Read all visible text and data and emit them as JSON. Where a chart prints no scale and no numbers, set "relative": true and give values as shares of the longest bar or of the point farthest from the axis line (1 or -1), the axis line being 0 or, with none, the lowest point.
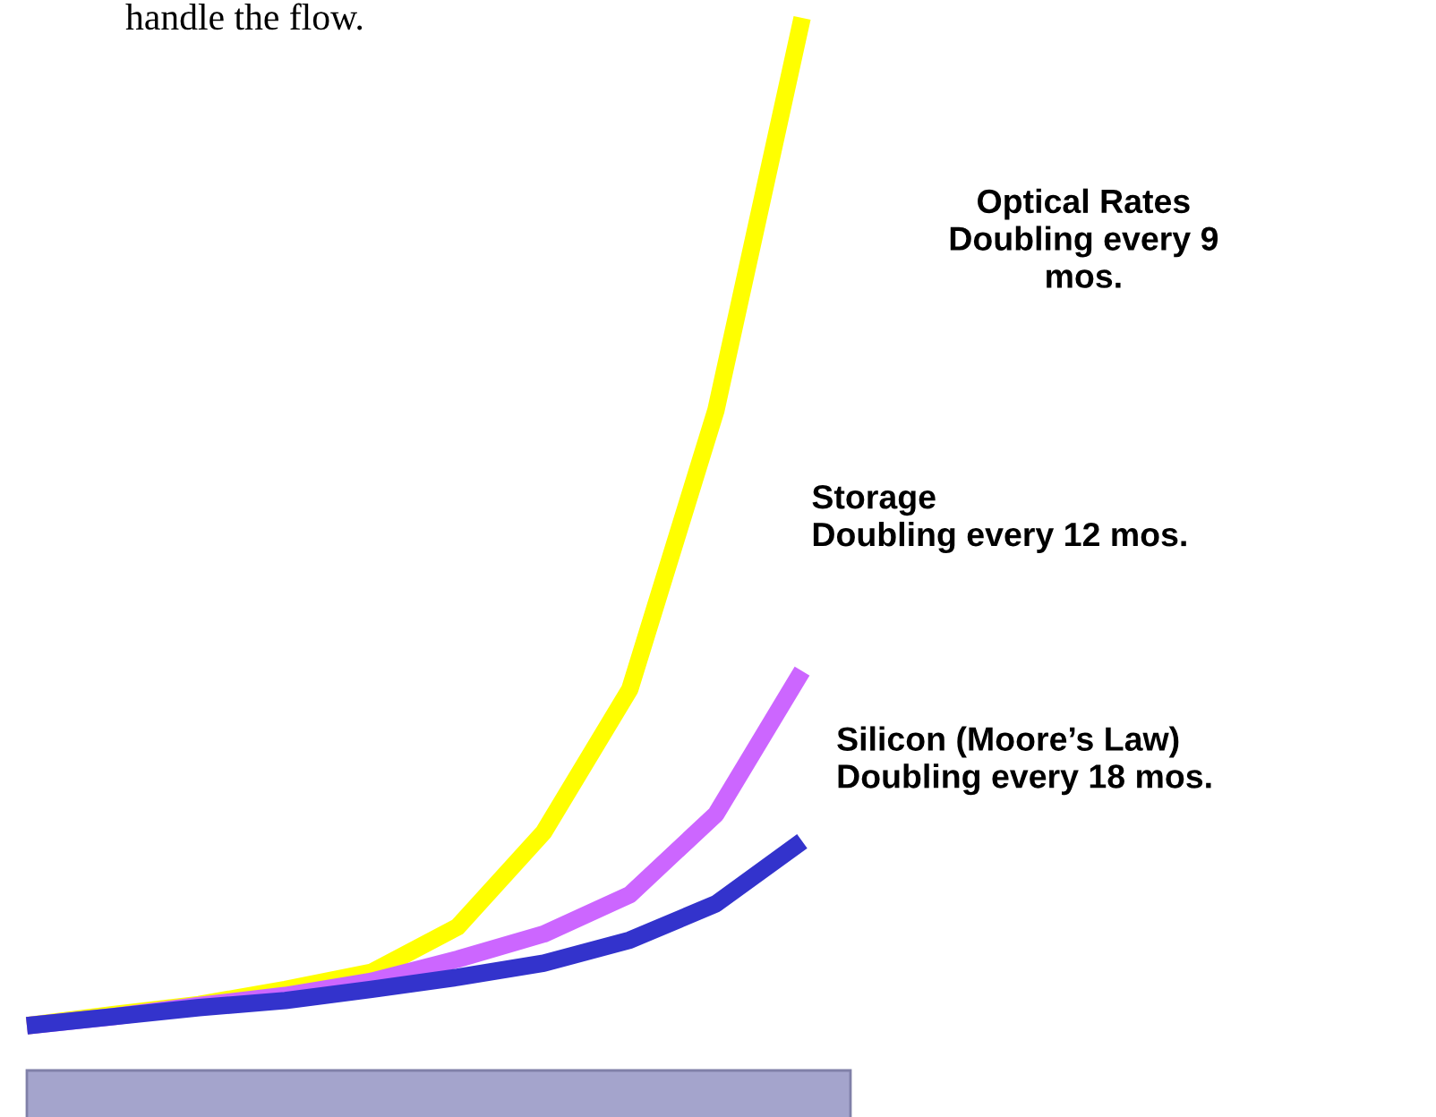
{
  "chart_data": {
    "type": "line",
    "relative": true,
    "categories": [
      null,
      null,
      null,
      null,
      null,
      null,
      null,
      null,
      null,
      null
    ],
    "series": [
      {
        "name": "Optical Rates\nDoubling every 9\nmos.",
        "color": "#ffff00",
        "values": [
          0,
          0.011,
          0.021,
          0.036,
          0.053,
          0.098,
          0.192,
          0.334,
          0.611,
          1
        ]
      },
      {
        "name": "Storage\nDoubling every 12 mos.",
        "color": "#cc66ff",
        "values": [
          0,
          0.009,
          0.02,
          0.03,
          0.044,
          0.066,
          0.091,
          0.13,
          0.21,
          0.352
        ]
      },
      {
        "name": "Silicon (Moore’s Law)\nDoubling every 18 mos.",
        "color": "#3333cc",
        "values": [
          0,
          0.009,
          0.018,
          0.025,
          0.036,
          0.048,
          0.062,
          0.085,
          0.121,
          0.183
        ]
      }
    ],
    "annotations": [
      "handle the flow."
    ],
    "grid": false,
    "legend": false
  }
}
